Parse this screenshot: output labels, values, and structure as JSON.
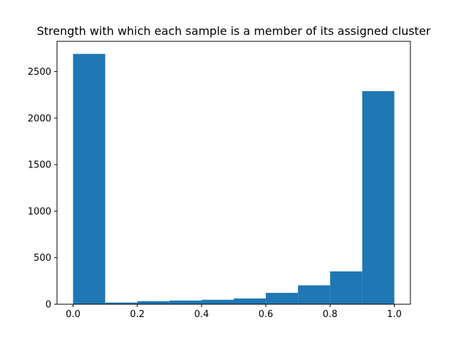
{
  "chart_data": {
    "type": "bar",
    "title": "Strength with which each sample is a member of its assigned cluster",
    "xlabel": "",
    "ylabel": "",
    "bins": [
      {
        "x0": 0.0,
        "x1": 0.1,
        "value": 2690
      },
      {
        "x0": 0.1,
        "x1": 0.2,
        "value": 18
      },
      {
        "x0": 0.2,
        "x1": 0.3,
        "value": 33
      },
      {
        "x0": 0.3,
        "x1": 0.4,
        "value": 40
      },
      {
        "x0": 0.4,
        "x1": 0.5,
        "value": 48
      },
      {
        "x0": 0.5,
        "x1": 0.6,
        "value": 62
      },
      {
        "x0": 0.6,
        "x1": 0.7,
        "value": 122
      },
      {
        "x0": 0.7,
        "x1": 0.8,
        "value": 203
      },
      {
        "x0": 0.8,
        "x1": 0.9,
        "value": 353
      },
      {
        "x0": 0.9,
        "x1": 1.0,
        "value": 2290
      }
    ],
    "xlim": [
      -0.05,
      1.05
    ],
    "ylim": [
      0,
      2825
    ],
    "xticks": [
      {
        "value": 0.0,
        "label": "0.0"
      },
      {
        "value": 0.2,
        "label": "0.2"
      },
      {
        "value": 0.4,
        "label": "0.4"
      },
      {
        "value": 0.6,
        "label": "0.6"
      },
      {
        "value": 0.8,
        "label": "0.8"
      },
      {
        "value": 1.0,
        "label": "1.0"
      }
    ],
    "yticks": [
      {
        "value": 0,
        "label": "0"
      },
      {
        "value": 500,
        "label": "500"
      },
      {
        "value": 1000,
        "label": "1000"
      },
      {
        "value": 1500,
        "label": "1500"
      },
      {
        "value": 2000,
        "label": "2000"
      },
      {
        "value": 2500,
        "label": "2500"
      }
    ],
    "bar_color": "#1f77b4",
    "grid": false,
    "legend": "none"
  }
}
